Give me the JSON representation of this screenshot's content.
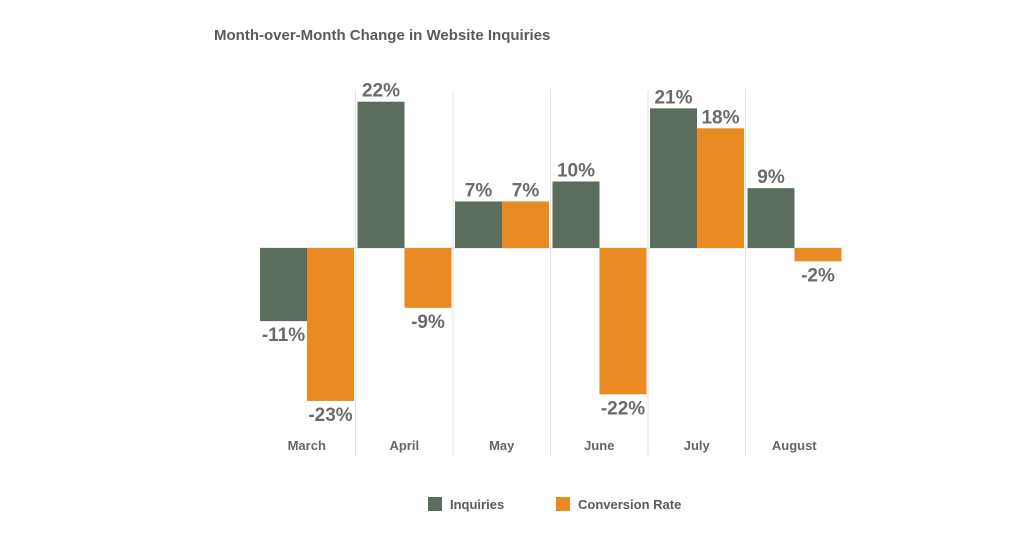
{
  "chart_data": {
    "type": "bar",
    "title": "Month-over-Month Change in Website Inquiries",
    "categories": [
      "March",
      "April",
      "May",
      "June",
      "July",
      "August"
    ],
    "series": [
      {
        "name": "Inquiries",
        "color": "#5b6e5d",
        "values": [
          -11,
          22,
          7,
          10,
          21,
          9
        ],
        "labels": [
          "-11%",
          "22%",
          "7%",
          "10%",
          "21%",
          "9%"
        ]
      },
      {
        "name": "Conversion Rate",
        "color": "#e98a22",
        "values": [
          -23,
          -9,
          7,
          -22,
          18,
          -2
        ],
        "labels": [
          "-23%",
          "-9%",
          "7%",
          "-22%",
          "18%",
          "-2%"
        ]
      }
    ],
    "ylim": [
      -30,
      25
    ],
    "value_unit": "%",
    "grid": "vertical category separators",
    "legend_position": "bottom"
  }
}
